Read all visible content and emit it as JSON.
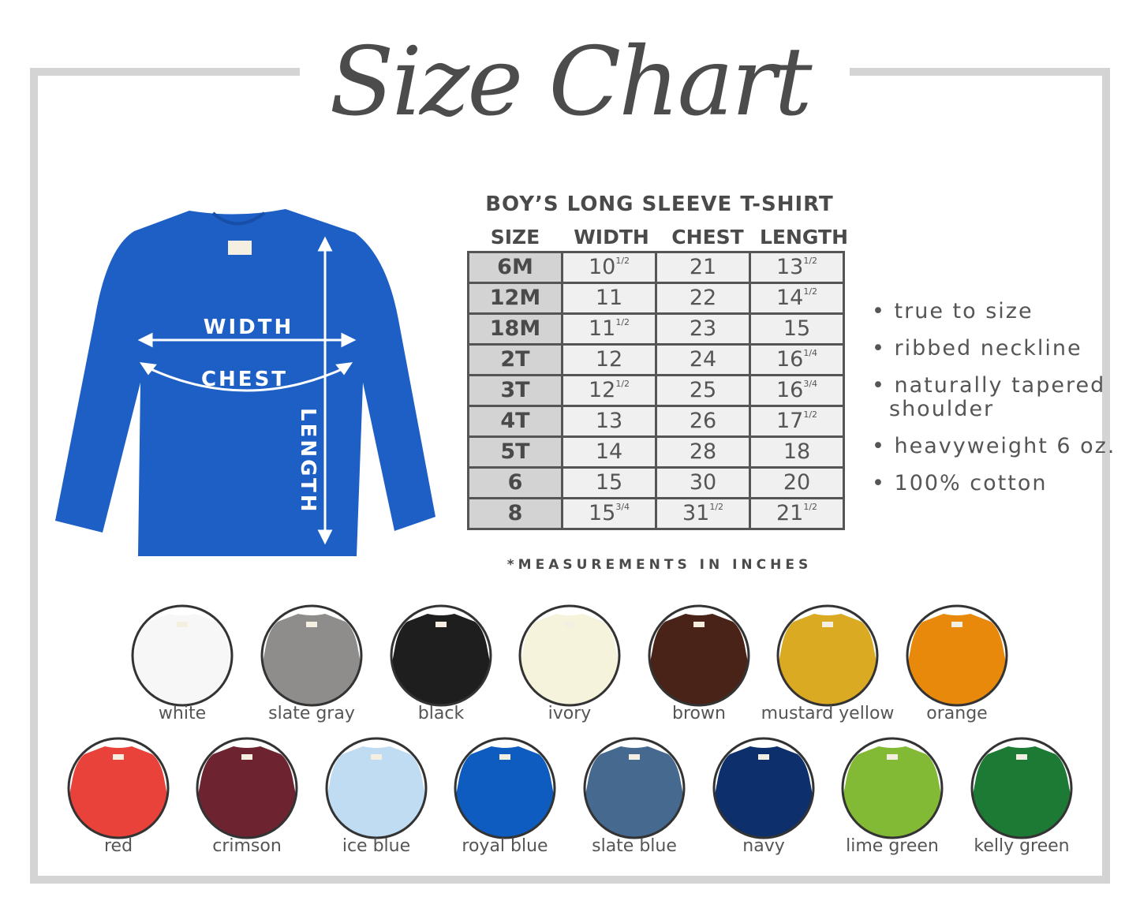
{
  "title": "Size Chart",
  "product_title": "BOY’S LONG SLEEVE T-SHIRT",
  "columns": [
    "SIZE",
    "WIDTH",
    "CHEST",
    "LENGTH"
  ],
  "rows": [
    {
      "size": "6M",
      "width": "10",
      "width_frac": "1/2",
      "chest": "21",
      "chest_frac": "",
      "length": "13",
      "length_frac": "1/2"
    },
    {
      "size": "12M",
      "width": "11",
      "width_frac": "",
      "chest": "22",
      "chest_frac": "",
      "length": "14",
      "length_frac": "1/2"
    },
    {
      "size": "18M",
      "width": "11",
      "width_frac": "1/2",
      "chest": "23",
      "chest_frac": "",
      "length": "15",
      "length_frac": ""
    },
    {
      "size": "2T",
      "width": "12",
      "width_frac": "",
      "chest": "24",
      "chest_frac": "",
      "length": "16",
      "length_frac": "1/4"
    },
    {
      "size": "3T",
      "width": "12",
      "width_frac": "1/2",
      "chest": "25",
      "chest_frac": "",
      "length": "16",
      "length_frac": "3/4"
    },
    {
      "size": "4T",
      "width": "13",
      "width_frac": "",
      "chest": "26",
      "chest_frac": "",
      "length": "17",
      "length_frac": "1/2"
    },
    {
      "size": "5T",
      "width": "14",
      "width_frac": "",
      "chest": "28",
      "chest_frac": "",
      "length": "18",
      "length_frac": ""
    },
    {
      "size": "6",
      "width": "15",
      "width_frac": "",
      "chest": "30",
      "chest_frac": "",
      "length": "20",
      "length_frac": ""
    },
    {
      "size": "8",
      "width": "15",
      "width_frac": "3/4",
      "chest": "31",
      "chest_frac": "1/2",
      "length": "21",
      "length_frac": "1/2"
    }
  ],
  "note": "*MEASUREMENTS IN INCHES",
  "diagram": {
    "width_label": "WIDTH",
    "chest_label": "CHEST",
    "length_label": "LENGTH",
    "shirt_color": "#1e5fc6"
  },
  "features": [
    "true to size",
    "ribbed neckline",
    "naturally tapered shoulder",
    "heavyweight 6 oz.",
    "100% cotton"
  ],
  "colors": [
    {
      "name": "white",
      "hex": "#f7f7f7"
    },
    {
      "name": "slate gray",
      "hex": "#8f8d8b"
    },
    {
      "name": "black",
      "hex": "#1e1e1e"
    },
    {
      "name": "ivory",
      "hex": "#f6f3dd"
    },
    {
      "name": "brown",
      "hex": "#4a2318"
    },
    {
      "name": "mustard yellow",
      "hex": "#d9aa22"
    },
    {
      "name": "orange",
      "hex": "#e8890c"
    },
    {
      "name": "red",
      "hex": "#e8423a"
    },
    {
      "name": "crimson",
      "hex": "#6e2330"
    },
    {
      "name": "ice blue",
      "hex": "#c0dcf2"
    },
    {
      "name": "royal blue",
      "hex": "#0f5cc0"
    },
    {
      "name": "slate blue",
      "hex": "#46698f"
    },
    {
      "name": "navy",
      "hex": "#0d2f6b"
    },
    {
      "name": "lime green",
      "hex": "#82b935"
    },
    {
      "name": "kelly green",
      "hex": "#1c7a35"
    }
  ]
}
